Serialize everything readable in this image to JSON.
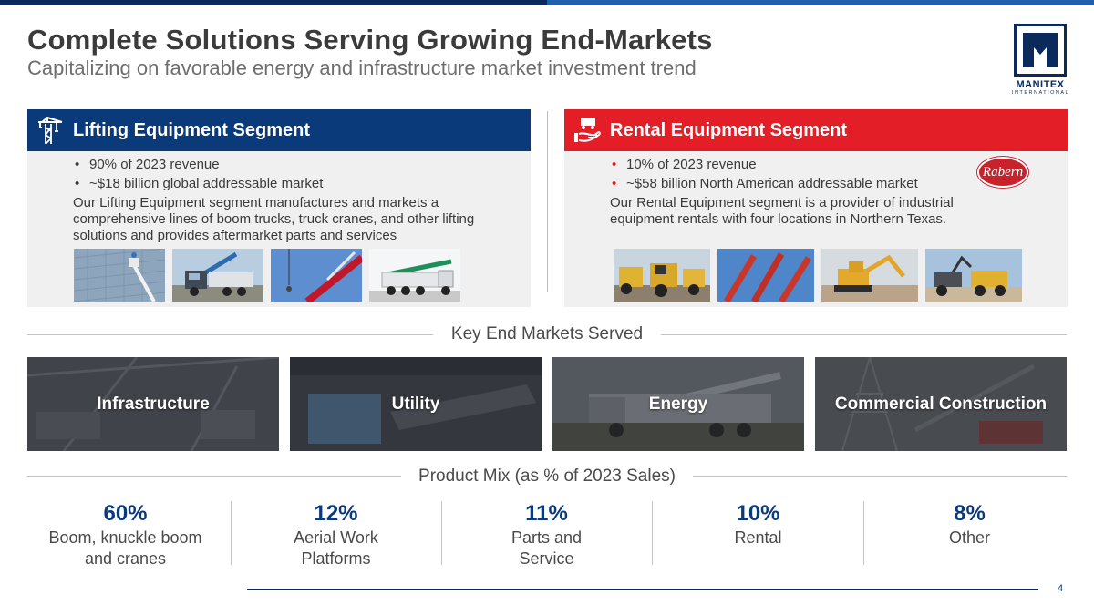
{
  "header": {
    "title": "Complete Solutions Serving Growing End-Markets",
    "subtitle": "Capitalizing on favorable energy and infrastructure market investment trend"
  },
  "logo": {
    "name": "MANITEX",
    "sub": "INTERNATIONAL"
  },
  "colors": {
    "navy": "#0b3a7a",
    "red": "#e31e26",
    "dark_navy": "#0b2a5b"
  },
  "lifting": {
    "icon": "crane-icon",
    "title": "Lifting Equipment Segment",
    "bullets": [
      "90% of 2023 revenue",
      "~$18 billion global addressable market"
    ],
    "description": "Our Lifting Equipment segment manufactures and markets a comprehensive lines of boom trucks, truck cranes, and other lifting solutions and provides aftermarket parts and services"
  },
  "rental": {
    "icon": "hand-truck-icon",
    "title": "Rental Equipment Segment",
    "bullets": [
      "10% of 2023 revenue",
      "~$58 billion North American addressable market"
    ],
    "description": "Our Rental Equipment segment is a provider of industrial equipment rentals with four locations in Northern Texas.",
    "brand_logo": "Rabern"
  },
  "markets": {
    "heading": "Key End Markets Served",
    "items": [
      "Infrastructure",
      "Utility",
      "Energy",
      "Commercial Construction"
    ]
  },
  "product_mix": {
    "heading": "Product Mix (as % of 2023 Sales)",
    "items": [
      {
        "value": "60%",
        "label_1": "Boom, knuckle boom",
        "label_2": "and cranes"
      },
      {
        "value": "12%",
        "label_1": "Aerial Work",
        "label_2": "Platforms"
      },
      {
        "value": "11%",
        "label_1": "Parts and",
        "label_2": "Service"
      },
      {
        "value": "10%",
        "label_1": "Rental",
        "label_2": ""
      },
      {
        "value": "8%",
        "label_1": "Other",
        "label_2": ""
      }
    ]
  },
  "page_number": "4"
}
